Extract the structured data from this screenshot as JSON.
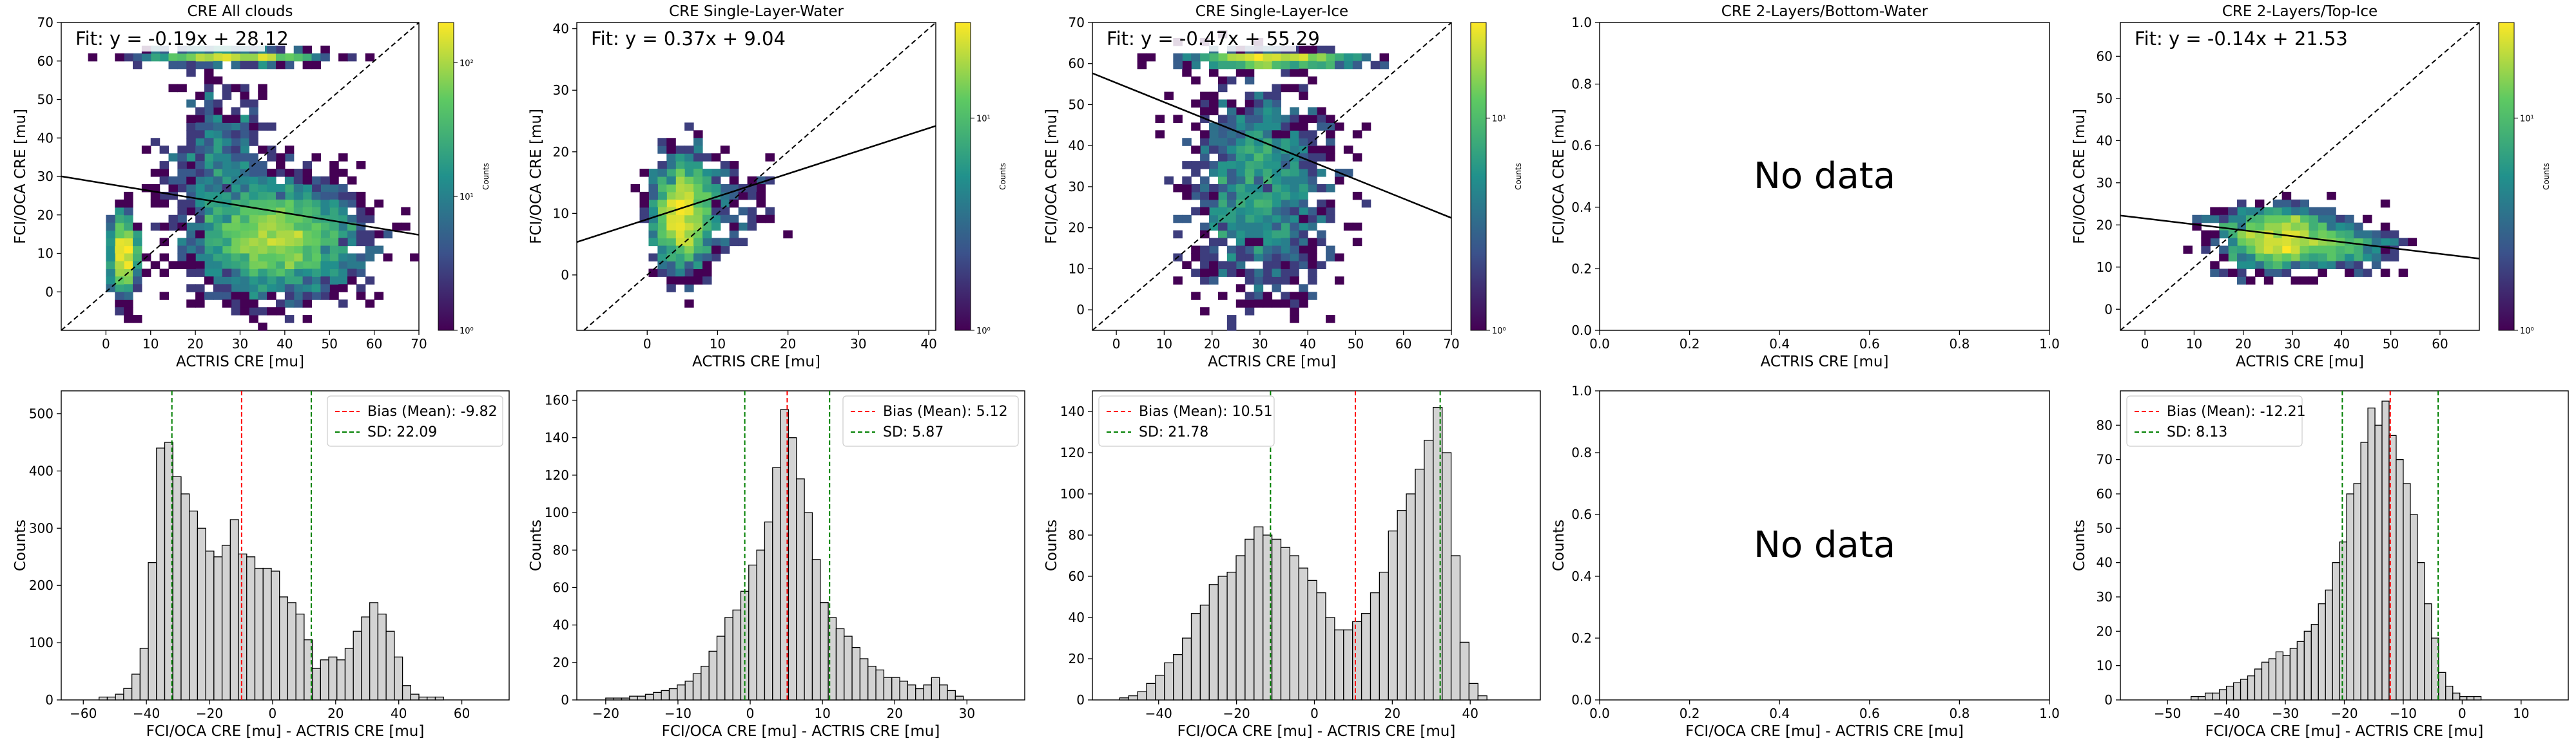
{
  "figure": {
    "colorbar_label": "Counts",
    "no_data_text": "No data",
    "scatter_xlabel": "ACTRIS CRE [mu]",
    "scatter_ylabel": "FCI/OCA CRE [mu]",
    "hist_xlabel": "FCI/OCA CRE [mu] - ACTRIS CRE [mu]",
    "hist_ylabel": "Counts",
    "colors": {
      "bias_line": "#ff0000",
      "sd_line": "#008000",
      "bar_fill": "#d3d3d3",
      "bar_edge": "#000000",
      "one_to_one": "#000000",
      "fit_line": "#000000"
    }
  },
  "chart_data": [
    {
      "type": "heatmap",
      "title": "CRE All clouds",
      "fit_label": "Fit: y = -0.19x + 28.12",
      "fit": {
        "slope": -0.19,
        "intercept": 28.12
      },
      "xlim": [
        -10,
        70
      ],
      "ylim": [
        -10,
        70
      ],
      "xticks": [
        "0",
        "10",
        "20",
        "30",
        "40",
        "50",
        "60",
        "70"
      ],
      "yticks": [
        "0",
        "10",
        "20",
        "30",
        "40",
        "50",
        "60",
        "70"
      ],
      "colorbar": {
        "scale": "log",
        "ticks": [
          "10⁰",
          "10¹",
          "10²"
        ]
      },
      "clusters": [
        {
          "x": 4,
          "y": 10,
          "sx": 1.5,
          "sy": 5,
          "n": 120
        },
        {
          "x": 38,
          "y": 14,
          "sx": 9,
          "sy": 7,
          "n": 520
        },
        {
          "x": 28,
          "y": 61,
          "sx": 10,
          "sy": 0.8,
          "n": 100
        },
        {
          "x": 25,
          "y": 35,
          "sx": 6,
          "sy": 10,
          "n": 90
        }
      ]
    },
    {
      "type": "heatmap",
      "title": "CRE Single-Layer-Water",
      "fit_label": "Fit: y = 0.37x + 9.04",
      "fit": {
        "slope": 0.37,
        "intercept": 9.04
      },
      "xlim": [
        -10,
        41
      ],
      "ylim": [
        -9,
        41
      ],
      "xticks": [
        "0",
        "10",
        "20",
        "30",
        "40"
      ],
      "yticks": [
        "0",
        "10",
        "20",
        "30",
        "40"
      ],
      "colorbar": {
        "scale": "log",
        "ticks": [
          "10⁰",
          "10¹"
        ]
      },
      "clusters": [
        {
          "x": 5,
          "y": 10,
          "sx": 2,
          "sy": 4.5,
          "n": 220
        },
        {
          "x": 9,
          "y": 12,
          "sx": 4,
          "sy": 4,
          "n": 40
        }
      ]
    },
    {
      "type": "heatmap",
      "title": "CRE Single-Layer-Ice",
      "fit_label": "Fit: y = -0.47x + 55.29",
      "fit": {
        "slope": -0.47,
        "intercept": 55.29
      },
      "xlim": [
        -5,
        70
      ],
      "ylim": [
        -5,
        70
      ],
      "xticks": [
        "0",
        "10",
        "20",
        "30",
        "40",
        "50",
        "60",
        "70"
      ],
      "yticks": [
        "0",
        "10",
        "20",
        "30",
        "40",
        "50",
        "60",
        "70"
      ],
      "colorbar": {
        "scale": "log",
        "ticks": [
          "10⁰",
          "10¹"
        ]
      },
      "clusters": [
        {
          "x": 30,
          "y": 30,
          "sx": 7,
          "sy": 13,
          "n": 260
        },
        {
          "x": 33,
          "y": 61,
          "sx": 9,
          "sy": 0.8,
          "n": 110
        }
      ]
    },
    {
      "type": "heatmap",
      "title": "CRE 2-Layers/Bottom-Water",
      "empty": true,
      "xlim": [
        0,
        1
      ],
      "ylim": [
        0,
        1
      ],
      "xticks": [
        "0.0",
        "0.2",
        "0.4",
        "0.6",
        "0.8",
        "1.0"
      ],
      "yticks": [
        "0.0",
        "0.2",
        "0.4",
        "0.6",
        "0.8",
        "1.0"
      ]
    },
    {
      "type": "heatmap",
      "title": "CRE 2-Layers/Top-Ice",
      "fit_label": "Fit: y = -0.14x + 21.53",
      "fit": {
        "slope": -0.14,
        "intercept": 21.53
      },
      "xlim": [
        -5,
        68
      ],
      "ylim": [
        -5,
        68
      ],
      "xticks": [
        "0",
        "10",
        "20",
        "30",
        "40",
        "50",
        "60"
      ],
      "yticks": [
        "0",
        "10",
        "20",
        "30",
        "40",
        "50",
        "60"
      ],
      "colorbar": {
        "scale": "log",
        "ticks": [
          "10⁰",
          "10¹"
        ]
      },
      "clusters": [
        {
          "x": 27,
          "y": 17,
          "sx": 6,
          "sy": 3.5,
          "n": 220
        },
        {
          "x": 40,
          "y": 15,
          "sx": 6,
          "sy": 3,
          "n": 60
        }
      ]
    },
    {
      "type": "bar",
      "subtype": "histogram",
      "bias_label": "Bias (Mean): -9.82",
      "sd_label": "SD: 22.09",
      "bias": -9.82,
      "sd": 22.09,
      "xlim": [
        -67,
        75
      ],
      "ylim": [
        0,
        540
      ],
      "xticks": [
        "−60",
        "−40",
        "−20",
        "0",
        "20",
        "40",
        "60"
      ],
      "yticks": [
        "0",
        "100",
        "200",
        "300",
        "400",
        "500"
      ],
      "bin_start": -55,
      "bin_width": 2.6,
      "values": [
        5,
        5,
        10,
        20,
        45,
        90,
        240,
        440,
        450,
        390,
        360,
        330,
        300,
        260,
        250,
        270,
        315,
        255,
        250,
        230,
        230,
        225,
        180,
        170,
        150,
        105,
        55,
        70,
        75,
        70,
        90,
        120,
        145,
        170,
        150,
        120,
        75,
        25,
        10,
        5,
        5,
        5
      ]
    },
    {
      "type": "bar",
      "subtype": "histogram",
      "bias_label": "Bias (Mean): 5.12",
      "sd_label": "SD: 5.87",
      "bias": 5.12,
      "sd": 5.87,
      "xlim": [
        -24,
        38
      ],
      "ylim": [
        0,
        165
      ],
      "xticks": [
        "−20",
        "−10",
        "0",
        "10",
        "20",
        "30"
      ],
      "yticks": [
        "0",
        "20",
        "40",
        "60",
        "80",
        "100",
        "120",
        "140",
        "160"
      ],
      "bin_start": -20,
      "bin_width": 1.1,
      "values": [
        1,
        1,
        1,
        2,
        2,
        3,
        4,
        5,
        6,
        8,
        10,
        14,
        18,
        26,
        34,
        44,
        48,
        58,
        72,
        80,
        95,
        124,
        155,
        140,
        118,
        100,
        75,
        52,
        44,
        38,
        34,
        28,
        22,
        18,
        16,
        12,
        12,
        10,
        8,
        6,
        8,
        12,
        8,
        5,
        2
      ]
    },
    {
      "type": "bar",
      "subtype": "histogram",
      "bias_label": "Bias (Mean): 10.51",
      "sd_label": "SD: 21.78",
      "bias": 10.51,
      "sd": 21.78,
      "xlim": [
        -57,
        58
      ],
      "ylim": [
        0,
        150
      ],
      "xticks": [
        "−40",
        "−20",
        "0",
        "20",
        "40"
      ],
      "yticks": [
        "0",
        "20",
        "40",
        "60",
        "80",
        "100",
        "120",
        "140"
      ],
      "bin_start": -50,
      "bin_width": 2.3,
      "values": [
        1,
        2,
        4,
        8,
        12,
        18,
        22,
        30,
        42,
        46,
        56,
        60,
        62,
        70,
        78,
        84,
        80,
        78,
        74,
        70,
        64,
        58,
        52,
        40,
        34,
        34,
        38,
        42,
        52,
        62,
        82,
        92,
        100,
        112,
        126,
        142,
        120,
        70,
        28,
        8,
        2
      ]
    },
    {
      "type": "bar",
      "subtype": "histogram",
      "empty": true,
      "xlim": [
        0,
        1
      ],
      "ylim": [
        0,
        1
      ],
      "xticks": [
        "0.0",
        "0.2",
        "0.4",
        "0.6",
        "0.8",
        "1.0"
      ],
      "yticks": [
        "0.0",
        "0.2",
        "0.4",
        "0.6",
        "0.8",
        "1.0"
      ]
    },
    {
      "type": "bar",
      "subtype": "histogram",
      "bias_label": "Bias (Mean): -12.21",
      "sd_label": "SD: 8.13",
      "bias": -12.21,
      "sd": 8.13,
      "xlim": [
        -58,
        18
      ],
      "ylim": [
        0,
        90
      ],
      "xticks": [
        "−50",
        "−40",
        "−30",
        "−20",
        "−10",
        "0",
        "10"
      ],
      "yticks": [
        "0",
        "10",
        "20",
        "30",
        "40",
        "50",
        "60",
        "70",
        "80"
      ],
      "bin_start": -46,
      "bin_width": 1.2,
      "values": [
        1,
        1,
        2,
        2,
        3,
        4,
        5,
        6,
        7,
        9,
        11,
        12,
        14,
        13,
        15,
        17,
        20,
        22,
        28,
        32,
        40,
        46,
        60,
        63,
        75,
        85,
        80,
        87,
        77,
        70,
        63,
        54,
        40,
        28,
        18,
        8,
        4,
        2,
        1,
        1,
        1
      ]
    }
  ]
}
